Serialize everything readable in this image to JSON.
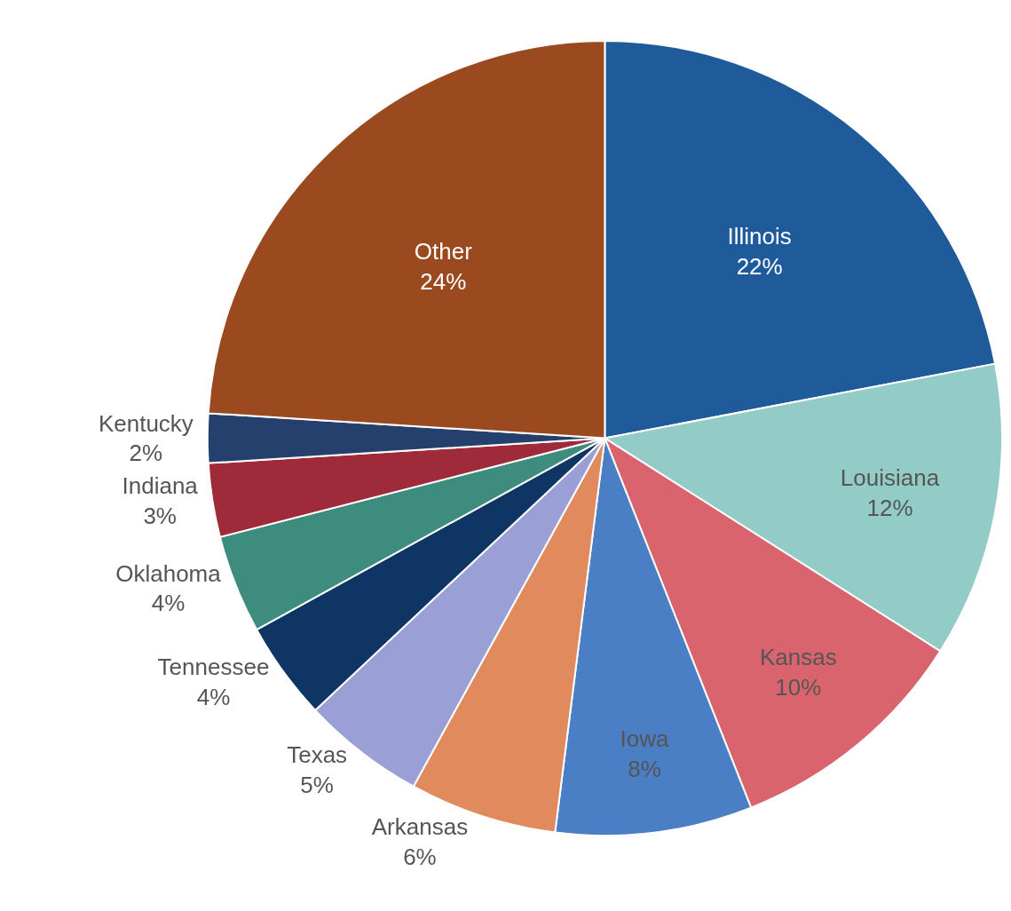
{
  "chart_data": {
    "type": "pie",
    "categories": [
      "Illinois",
      "Louisiana",
      "Kansas",
      "Iowa",
      "Arkansas",
      "Texas",
      "Tennessee",
      "Oklahoma",
      "Indiana",
      "Kentucky",
      "Other"
    ],
    "values": [
      22,
      12,
      10,
      8,
      6,
      5,
      4,
      4,
      3,
      2,
      24
    ],
    "value_labels": [
      "22%",
      "12%",
      "10%",
      "8%",
      "6%",
      "5%",
      "4%",
      "4%",
      "3%",
      "2%",
      "24%"
    ],
    "colors": [
      "#1f5a9b",
      "#93cbc6",
      "#d9646e",
      "#4a7ec5",
      "#e08a5e",
      "#9a9fd6",
      "#0e3563",
      "#3e8c7e",
      "#9e2a3a",
      "#26406e",
      "#9b4a1f"
    ],
    "legend": false
  }
}
